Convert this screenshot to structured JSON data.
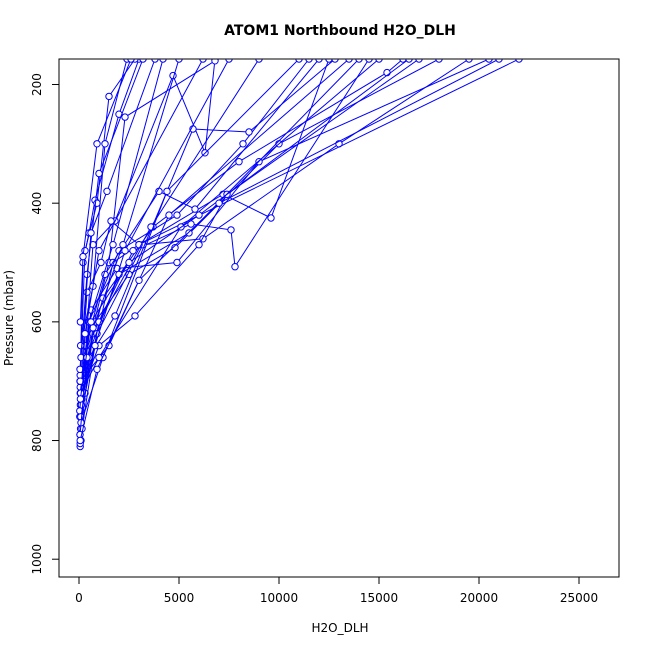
{
  "chart_data": {
    "type": "line",
    "title": "ATOM1 Northbound H2O_DLH",
    "xlabel": "H2O_DLH",
    "ylabel": "Pressure (mbar)",
    "xlim": [
      -1000,
      27000
    ],
    "ylim": [
      1030,
      157
    ],
    "y_reversed": true,
    "grid": false,
    "legend": "none",
    "color": "#0000ff",
    "x_ticks": [
      {
        "value": 0,
        "label": "0"
      },
      {
        "value": 5000,
        "label": "5000"
      },
      {
        "value": 10000,
        "label": "10000"
      },
      {
        "value": 15000,
        "label": "15000"
      },
      {
        "value": 20000,
        "label": "20000"
      },
      {
        "value": 25000,
        "label": "25000"
      }
    ],
    "y_ticks": [
      {
        "value": 200,
        "label": "200"
      },
      {
        "value": 400,
        "label": "400"
      },
      {
        "value": 600,
        "label": "600"
      },
      {
        "value": 800,
        "label": "800"
      },
      {
        "value": 1000,
        "label": "1000"
      }
    ],
    "series": [
      {
        "x": [
          60,
          200,
          700,
          1800,
          4700,
          6300,
          6800
        ],
        "y": [
          810,
          700,
          470,
          430,
          185,
          315,
          157
        ]
      },
      {
        "x": [
          100,
          400,
          1500,
          2300,
          6800
        ],
        "y": [
          800,
          650,
          500,
          255,
          160
        ]
      },
      {
        "x": [
          50,
          250,
          1200,
          3700,
          8000,
          15400,
          16200
        ],
        "y": [
          790,
          680,
          560,
          440,
          330,
          180,
          157
        ]
      },
      {
        "x": [
          80,
          300,
          1700,
          3000,
          7200,
          9600,
          12500
        ],
        "y": [
          780,
          720,
          500,
          470,
          385,
          425,
          157
        ]
      },
      {
        "x": [
          60,
          500,
          2000,
          4900,
          8200,
          11500
        ],
        "y": [
          805,
          600,
          480,
          420,
          300,
          157
        ]
      },
      {
        "x": [
          120,
          700,
          2700,
          5600,
          7600,
          7800,
          14500
        ],
        "y": [
          770,
          620,
          480,
          435,
          445,
          507,
          157
        ]
      },
      {
        "x": [
          40,
          350,
          1300,
          4000,
          5800,
          12000
        ],
        "y": [
          760,
          640,
          520,
          380,
          410,
          157
        ]
      },
      {
        "x": [
          90,
          800,
          2500,
          4800,
          10000,
          18000
        ],
        "y": [
          750,
          600,
          520,
          475,
          300,
          157
        ]
      },
      {
        "x": [
          70,
          600,
          1900,
          4900,
          9000,
          20500
        ],
        "y": [
          740,
          580,
          510,
          500,
          330,
          157
        ]
      },
      {
        "x": [
          150,
          900,
          3200,
          6200,
          13000,
          19500
        ],
        "y": [
          730,
          620,
          470,
          460,
          300,
          157
        ]
      },
      {
        "x": [
          100,
          1000,
          2800,
          6000,
          7400,
          17000
        ],
        "y": [
          720,
          640,
          590,
          470,
          385,
          157
        ]
      },
      {
        "x": [
          60,
          400,
          1100,
          1600,
          3000,
          22000
        ],
        "y": [
          710,
          550,
          500,
          430,
          470,
          157
        ]
      },
      {
        "x": [
          80,
          500,
          1800,
          5700,
          8500,
          12800
        ],
        "y": [
          700,
          660,
          590,
          275,
          280,
          157
        ]
      },
      {
        "x": [
          50,
          200,
          500,
          800,
          2000,
          3000
        ],
        "y": [
          700,
          500,
          450,
          395,
          250,
          157
        ]
      },
      {
        "x": [
          60,
          300,
          900,
          1500,
          2800
        ],
        "y": [
          690,
          480,
          400,
          220,
          157
        ]
      },
      {
        "x": [
          80,
          700,
          1300,
          2400
        ],
        "y": [
          640,
          540,
          300,
          157
        ]
      },
      {
        "x": [
          50,
          400,
          1000,
          3200
        ],
        "y": [
          680,
          520,
          350,
          157
        ]
      },
      {
        "x": [
          100,
          600,
          1400,
          3800
        ],
        "y": [
          660,
          450,
          380,
          157
        ]
      },
      {
        "x": [
          70,
          200,
          900,
          2600
        ],
        "y": [
          600,
          490,
          300,
          157
        ]
      },
      {
        "x": [
          60,
          500,
          1700,
          4200
        ],
        "y": [
          720,
          600,
          470,
          157
        ]
      },
      {
        "x": [
          120,
          700,
          2200,
          5000
        ],
        "y": [
          740,
          610,
          470,
          157
        ]
      },
      {
        "x": [
          40,
          300,
          1000,
          6200
        ],
        "y": [
          750,
          620,
          480,
          157
        ]
      },
      {
        "x": [
          90,
          1000,
          3600,
          9000
        ],
        "y": [
          760,
          600,
          440,
          157
        ]
      },
      {
        "x": [
          150,
          800,
          2300,
          7500
        ],
        "y": [
          780,
          640,
          480,
          157
        ]
      },
      {
        "x": [
          100,
          1200,
          4400,
          11000
        ],
        "y": [
          770,
          660,
          380,
          157
        ]
      },
      {
        "x": [
          60,
          1500,
          4500,
          13500
        ],
        "y": [
          700,
          640,
          420,
          157
        ]
      },
      {
        "x": [
          80,
          1000,
          5100,
          15000
        ],
        "y": [
          720,
          660,
          440,
          157
        ]
      },
      {
        "x": [
          50,
          400,
          2000,
          5500,
          14000
        ],
        "y": [
          790,
          660,
          520,
          450,
          157
        ]
      },
      {
        "x": [
          70,
          600,
          2500,
          6000,
          16500
        ],
        "y": [
          730,
          600,
          500,
          420,
          157
        ]
      },
      {
        "x": [
          60,
          900,
          3000,
          7000,
          21000
        ],
        "y": [
          800,
          680,
          530,
          400,
          157
        ]
      }
    ]
  }
}
